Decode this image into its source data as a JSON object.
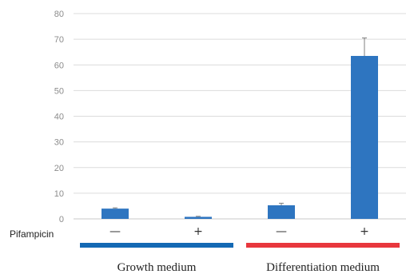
{
  "chart_data": {
    "type": "bar",
    "ylim": [
      0,
      80
    ],
    "yticks": [
      "0",
      "10",
      "20",
      "30",
      "40",
      "50",
      "60",
      "70",
      "80"
    ],
    "grid": true,
    "row_label": "Pifampicin",
    "categories": [
      "—",
      "+",
      "—",
      "+"
    ],
    "values": [
      4.0,
      0.8,
      5.3,
      63.5
    ],
    "error_upper": [
      0.3,
      0.2,
      0.8,
      7.0
    ],
    "bar_color": "#2e75c0",
    "groups": [
      {
        "label": "Growth medium",
        "color": "#1469b4",
        "span": [
          0,
          1
        ]
      },
      {
        "label": "Differentiation medium",
        "color": "#e8373d",
        "span": [
          2,
          3
        ]
      }
    ]
  }
}
